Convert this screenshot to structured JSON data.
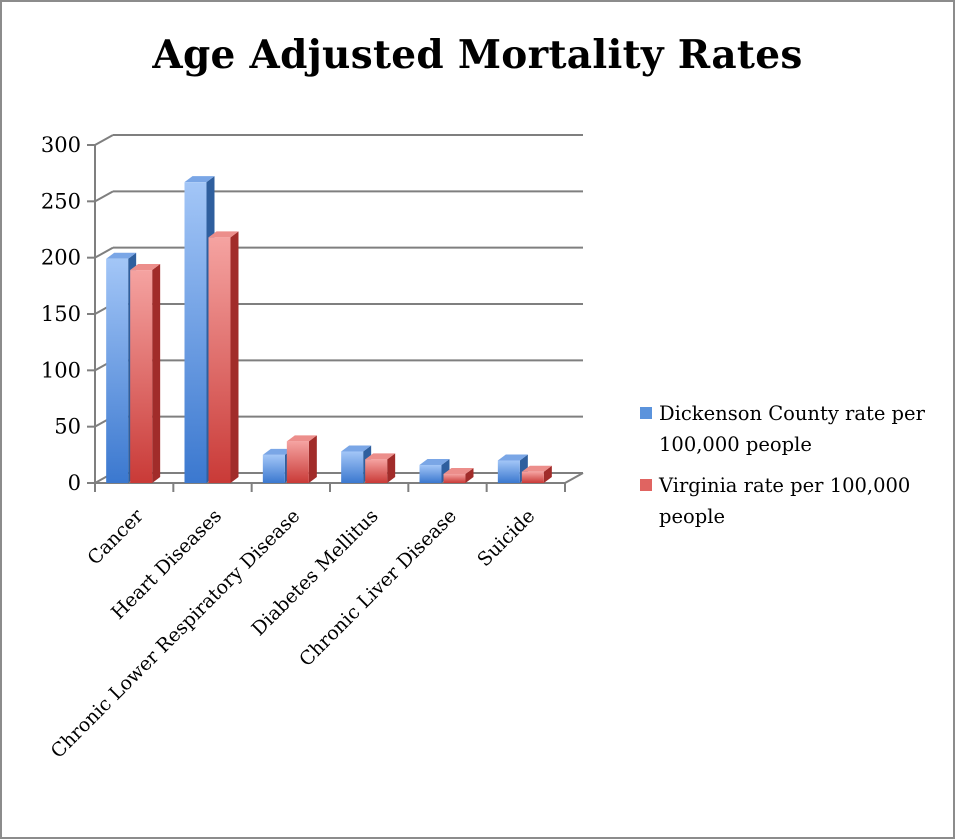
{
  "chart_data": {
    "type": "bar",
    "title": "Age Adjusted Mortality Rates",
    "categories": [
      "Cancer",
      "Heart Diseases",
      "Chronic Lower Respiratory Disease",
      "Diabetes Mellitus",
      "Chronic Liver Disease",
      "Suicide"
    ],
    "series": [
      {
        "name": "Dickenson County rate per 100,000 people",
        "values": [
          199,
          267,
          25,
          28,
          16,
          20
        ]
      },
      {
        "name": "Virginia rate per 100,000 people",
        "values": [
          189,
          218,
          37,
          21,
          8,
          10
        ]
      }
    ],
    "ylim": [
      0,
      300
    ],
    "yticks": [
      "0",
      "50",
      "100",
      "150",
      "200",
      "250",
      "300"
    ],
    "grid": true,
    "legend_position": "right",
    "colors": {
      "series1": "#5b93dc",
      "series2": "#e06461",
      "grid": "#7f7f7f"
    },
    "style": "3d-clustered-column"
  }
}
